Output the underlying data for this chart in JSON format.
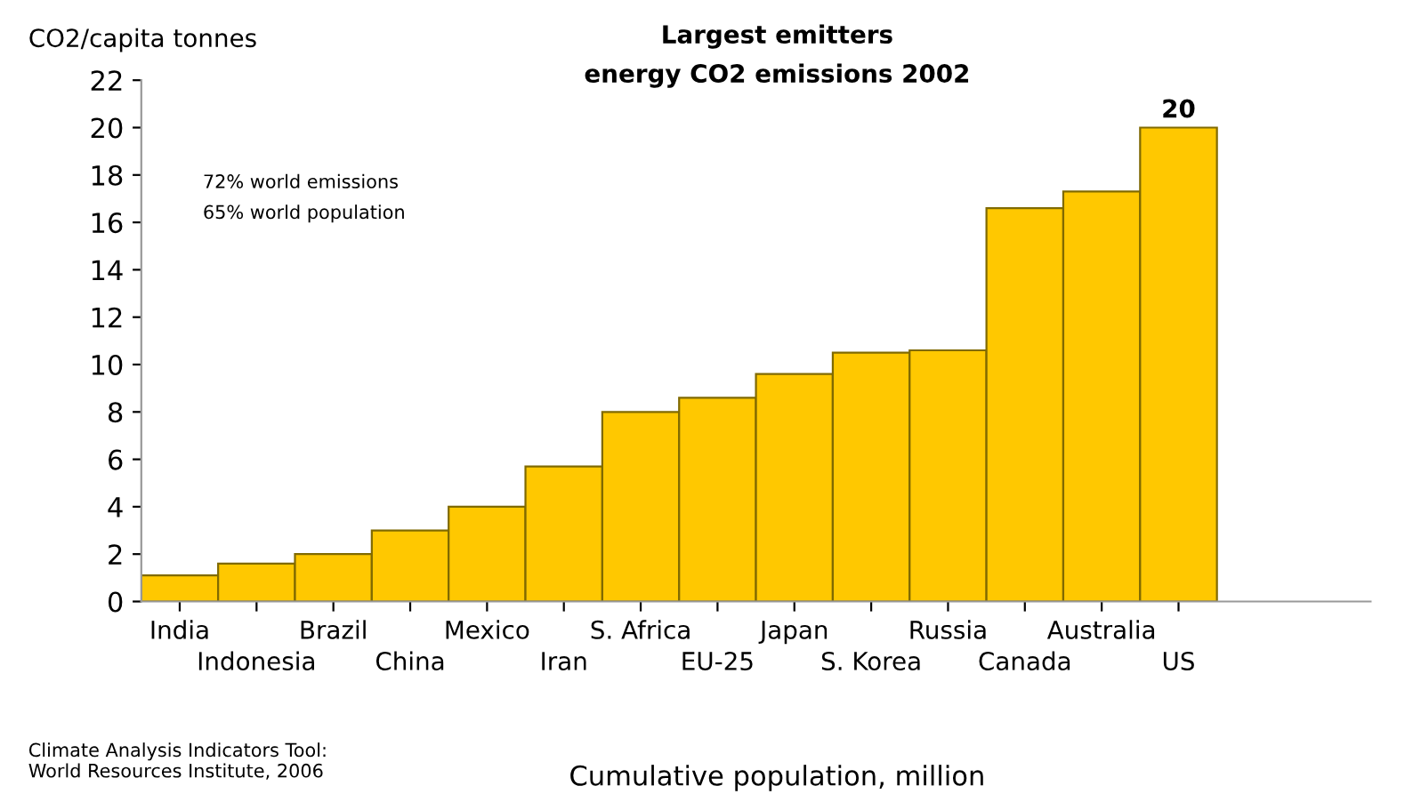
{
  "chart_data": {
    "type": "bar",
    "title": "Largest emitters\nenergy CO2 emissions 2002",
    "ylabel": "CO2/capita tonnes",
    "xlabel": "Cumulative population, million",
    "categories": [
      "India",
      "Indonesia",
      "Brazil",
      "China",
      "Mexico",
      "Iran",
      "S. Africa",
      "EU-25",
      "Japan",
      "S. Korea",
      "Russia",
      "Canada",
      "Australia",
      "US"
    ],
    "values": [
      1.1,
      1.6,
      2.0,
      3.0,
      4.0,
      5.7,
      8.0,
      8.6,
      9.6,
      10.5,
      10.6,
      16.6,
      17.3,
      20
    ],
    "value_labels": [
      null,
      null,
      null,
      null,
      null,
      null,
      null,
      null,
      null,
      null,
      null,
      null,
      null,
      "20"
    ],
    "color": "#ffc800",
    "ylim": [
      0,
      22
    ],
    "yticks": [
      0,
      2,
      4,
      6,
      8,
      10,
      12,
      14,
      16,
      18,
      20,
      22
    ],
    "grid": false,
    "annotations": [
      "72% world emissions\n65% world population",
      "Climate Analysis Indicators Tool:\nWorld Resources Institute, 2006"
    ]
  }
}
